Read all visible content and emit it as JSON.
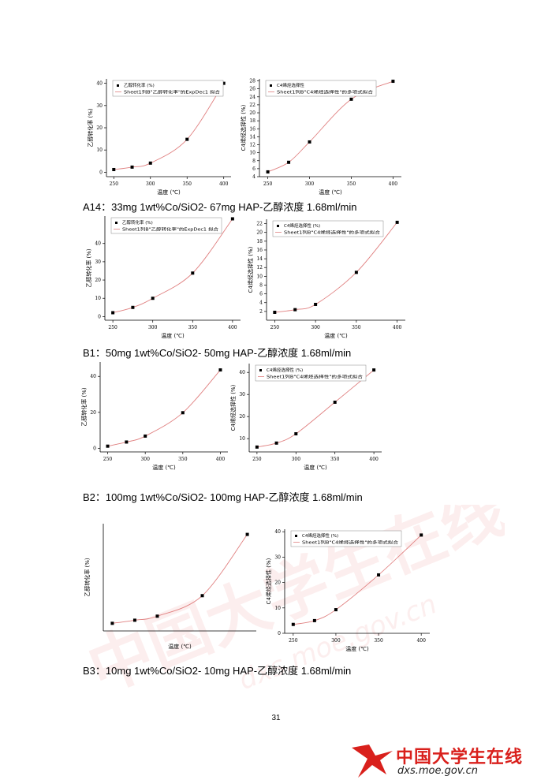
{
  "captions": {
    "a14": "A14：33mg 1wt%Co/SiO2- 67mg HAP-乙醇浓度 1.68ml/min",
    "b1": "B1：50mg 1wt%Co/SiO2- 50mg HAP-乙醇浓度 1.68ml/min",
    "b2": "B2：100mg 1wt%Co/SiO2- 100mg HAP-乙醇浓度 1.68ml/min",
    "b3": "B3：10mg 1wt%Co/SiO2- 10mg HAP-乙醇浓度 1.68ml/min"
  },
  "page_number": "31",
  "logo": {
    "name": "中国大学生在线",
    "url": "dxs.moe.gov.cn",
    "brand_color": "#d9201c"
  },
  "watermark": {
    "text": "中国大学生在线",
    "url": "dxs.moe.gov.cn"
  },
  "chart_data": [
    {
      "id": "a14-conv",
      "type": "scatter",
      "xlabel": "温度 (℃)",
      "ylabel": "乙醇转化率 (%)",
      "xlim": [
        240,
        410
      ],
      "ylim": [
        -2,
        42
      ],
      "xticks": [
        250,
        300,
        350,
        400
      ],
      "yticks": [
        0,
        10,
        20,
        30,
        40
      ],
      "legend": {
        "position": "top-left",
        "scatter": "乙醇转化率 (%)",
        "fit": "Sheet1列B\"乙醇转化率\"的ExpDec1 拟合"
      },
      "series": [
        {
          "name": "乙醇转化率 (%)",
          "x": [
            250,
            275,
            300,
            350,
            400
          ],
          "y": [
            1.2,
            2.3,
            4.1,
            14.8,
            40.0
          ]
        }
      ],
      "fit_color": "#e08080"
    },
    {
      "id": "a14-sel",
      "type": "scatter",
      "xlabel": "温度 (℃)",
      "ylabel": "C4烯烃选择性 (%)",
      "xlim": [
        240,
        410
      ],
      "ylim": [
        4,
        28.5
      ],
      "xticks": [
        250,
        300,
        350,
        400
      ],
      "yticks": [
        4,
        6,
        8,
        10,
        12,
        14,
        16,
        18,
        20,
        22,
        24,
        26,
        28
      ],
      "legend": {
        "position": "top-left",
        "scatter": "C4烯烃选择性",
        "fit": "Sheet1列B\"C4烯烃选择性\"的多项式拟合"
      },
      "series": [
        {
          "name": "C4烯烃选择性",
          "x": [
            250,
            275,
            300,
            350,
            400
          ],
          "y": [
            5.2,
            7.6,
            12.7,
            23.4,
            27.9
          ]
        }
      ],
      "fit_color": "#e08080"
    },
    {
      "id": "b1-conv",
      "type": "scatter",
      "xlabel": "温度 (℃)",
      "ylabel": "乙醇转化率 (%)",
      "xlim": [
        240,
        410
      ],
      "ylim": [
        -2,
        55
      ],
      "xticks": [
        250,
        300,
        350,
        400
      ],
      "yticks": [
        0,
        10,
        20,
        30,
        40
      ],
      "legend": {
        "position": "top-left",
        "scatter": "乙醇转化率 (%)",
        "fit": "Sheet1列B\"乙醇转化率\"的ExpDec1 拟合"
      },
      "series": [
        {
          "name": "乙醇转化率 (%)",
          "x": [
            250,
            275,
            300,
            350,
            400
          ],
          "y": [
            2.1,
            5.0,
            10.0,
            23.8,
            53.5
          ]
        }
      ],
      "fit_color": "#e08080"
    },
    {
      "id": "b1-sel",
      "type": "scatter",
      "xlabel": "温度 (℃)",
      "ylabel": "C4烯烃选择性 (%)",
      "xlim": [
        240,
        410
      ],
      "ylim": [
        0,
        23
      ],
      "xticks": [
        250,
        300,
        350,
        400
      ],
      "yticks": [
        2,
        4,
        6,
        8,
        10,
        12,
        14,
        16,
        18,
        20,
        22
      ],
      "legend": {
        "position": "top-left",
        "scatter": "C4烯烃选择性 (%)",
        "fit": "Sheet1列B\"C4烯烃选择性\"的多项式拟合"
      },
      "series": [
        {
          "name": "C4烯烃选择性 (%)",
          "x": [
            250,
            275,
            300,
            350,
            400
          ],
          "y": [
            1.8,
            2.4,
            3.6,
            10.9,
            22.3
          ]
        }
      ],
      "fit_color": "#e08080"
    },
    {
      "id": "b2-conv",
      "type": "scatter",
      "xlabel": "温度 (℃)",
      "ylabel": "乙醇转化率 (%)",
      "xlim": [
        240,
        410
      ],
      "ylim": [
        -2,
        48
      ],
      "xticks": [
        250,
        300,
        350,
        400
      ],
      "yticks": [
        0,
        20,
        40
      ],
      "legend": null,
      "series": [
        {
          "name": "乙醇转化率 (%)",
          "x": [
            250,
            275,
            300,
            350,
            400
          ],
          "y": [
            1.2,
            3.5,
            6.8,
            19.8,
            43.6
          ]
        }
      ],
      "fit_color": "#e08080"
    },
    {
      "id": "b2-sel",
      "type": "scatter",
      "xlabel": "温度 (℃)",
      "ylabel": "C4烯烃选择性 (%)",
      "xlim": [
        240,
        410
      ],
      "ylim": [
        4,
        44
      ],
      "xticks": [
        250,
        300,
        350,
        400
      ],
      "yticks": [
        10,
        20,
        30,
        40
      ],
      "legend": {
        "position": "top-left",
        "scatter": "C4烯烃选择性 (%)",
        "fit": "Sheet1列B\"C4烯烃选择性\"的多项式拟合"
      },
      "series": [
        {
          "name": "C4烯烃选择性 (%)",
          "x": [
            250,
            275,
            300,
            350,
            400
          ],
          "y": [
            6.2,
            8.0,
            12.2,
            26.5,
            41.1
          ]
        }
      ],
      "fit_color": "#e08080"
    },
    {
      "id": "b3-conv",
      "type": "scatter",
      "xlabel": "温度 (℃)",
      "ylabel": "乙醇转化率 (%)",
      "xlim": [
        240,
        410
      ],
      "ylim": [
        0,
        45
      ],
      "xticks": [],
      "yticks": [],
      "legend": null,
      "series": [
        {
          "name": "乙醇转化率 (%)",
          "x": [
            250,
            275,
            300,
            350,
            400
          ],
          "y": [
            3.2,
            4.5,
            6.2,
            14.8,
            40.5
          ]
        }
      ],
      "fit_color": "#e08080"
    },
    {
      "id": "b3-sel",
      "type": "scatter",
      "xlabel": "温度 (℃)",
      "ylabel": "C4烯烃选择性 (%)",
      "xlim": [
        240,
        410
      ],
      "ylim": [
        0,
        41
      ],
      "xticks": [
        250,
        300,
        350,
        400
      ],
      "yticks": [
        0,
        10,
        20,
        30,
        40
      ],
      "legend": {
        "position": "top-left",
        "scatter": "C4烯烃选择性 (%)",
        "fit": "Sheet1列B\"C4烯烃选择性\"的多项式拟合"
      },
      "series": [
        {
          "name": "C4烯烃选择性 (%)",
          "x": [
            250,
            275,
            300,
            350,
            400
          ],
          "y": [
            3.5,
            5.0,
            9.3,
            23.0,
            38.7
          ]
        }
      ],
      "fit_color": "#e08080"
    }
  ]
}
